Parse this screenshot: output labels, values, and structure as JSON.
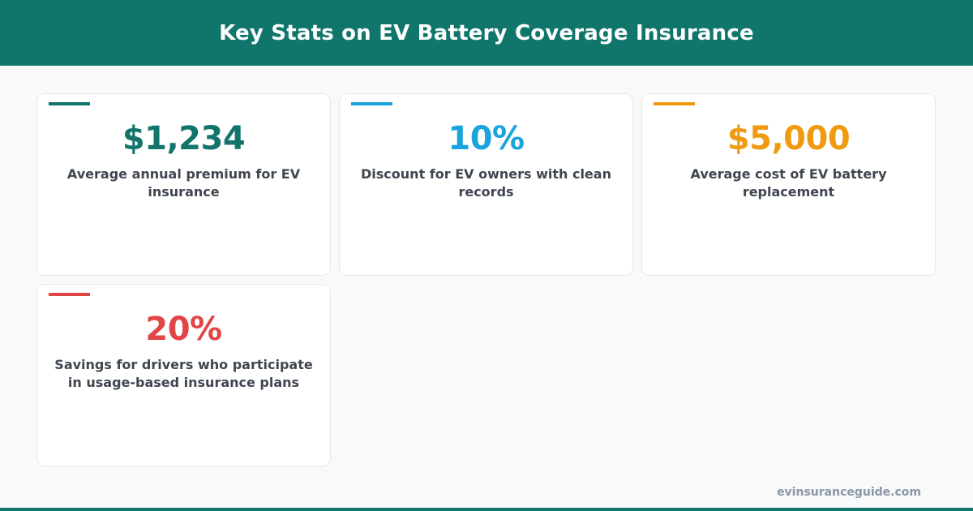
{
  "header": {
    "title": "Key Stats on EV Battery Coverage Insurance",
    "background": "#10766c"
  },
  "stats": [
    {
      "value": "$1,234",
      "label": "Average annual premium for EV insurance",
      "color": "#13746c"
    },
    {
      "value": "10%",
      "label": "Discount for EV owners with clean records",
      "color": "#1aa3dc"
    },
    {
      "value": "$5,000",
      "label": "Average cost of EV battery replacement",
      "color": "#f09a0f"
    },
    {
      "value": "20%",
      "label": "Savings for drivers who participate in usage-based insurance plans",
      "color": "#e14545"
    }
  ],
  "footer": {
    "site": "evinsuranceguide.com",
    "bar_color": "#10766c"
  }
}
